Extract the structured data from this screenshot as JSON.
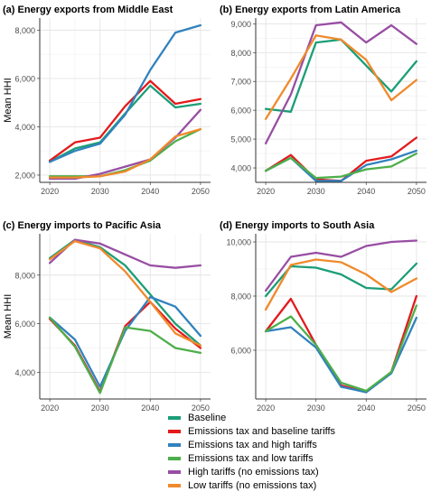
{
  "colors": {
    "baseline": "#1b9e77",
    "tax_baseline": "#e31a1c",
    "tax_high": "#3182bd",
    "tax_low": "#4daf4a",
    "high_tariffs": "#984ea3",
    "low_tariffs": "#ef8a2c"
  },
  "legend": [
    {
      "key": "baseline",
      "label": "Baseline"
    },
    {
      "key": "tax_baseline",
      "label": "Emissions tax and baseline tariffs"
    },
    {
      "key": "tax_high",
      "label": "Emissions tax and high tariffs"
    },
    {
      "key": "tax_low",
      "label": "Emissions tax and low tariffs"
    },
    {
      "key": "high_tariffs",
      "label": "High tariffs (no emissions tax)"
    },
    {
      "key": "low_tariffs",
      "label": "Low tariffs (no emissions tax)"
    }
  ],
  "chart_data": [
    {
      "type": "line",
      "title": "(a) Energy exports from Middle East",
      "ylabel": "Mean HHI",
      "x": [
        2020,
        2025,
        2030,
        2035,
        2040,
        2045,
        2050
      ],
      "xticks": [
        "2020",
        "2030",
        "2040",
        "2050"
      ],
      "ylim": [
        1700,
        8500
      ],
      "yticks": [
        2000,
        4000,
        6000,
        8000
      ],
      "ytick_labels": [
        "2,000",
        "4,000",
        "6,000",
        "8,000"
      ],
      "series": [
        {
          "key": "baseline",
          "values": [
            2550,
            3100,
            3350,
            4550,
            5700,
            4800,
            4950
          ]
        },
        {
          "key": "tax_baseline",
          "values": [
            2600,
            3350,
            3550,
            4850,
            5900,
            4950,
            5150
          ]
        },
        {
          "key": "tax_high",
          "values": [
            2550,
            3000,
            3300,
            4500,
            6350,
            7900,
            8200
          ]
        },
        {
          "key": "tax_low",
          "values": [
            1950,
            1950,
            1950,
            2200,
            2600,
            3400,
            3900
          ]
        },
        {
          "key": "high_tariffs",
          "values": [
            1850,
            1850,
            2050,
            2350,
            2650,
            3550,
            4700
          ]
        },
        {
          "key": "low_tariffs",
          "values": [
            1900,
            1900,
            1950,
            2150,
            2650,
            3600,
            3900
          ]
        }
      ]
    },
    {
      "type": "line",
      "title": "(b) Energy exports from Latin America",
      "ylabel": "",
      "x": [
        2020,
        2025,
        2030,
        2035,
        2040,
        2045,
        2050
      ],
      "xticks": [
        "2020",
        "2030",
        "2040",
        "2050"
      ],
      "ylim": [
        3500,
        9200
      ],
      "yticks": [
        4000,
        5000,
        6000,
        7000,
        8000,
        9000
      ],
      "ytick_labels": [
        "4,000",
        "5,000",
        "6,000",
        "7,000",
        "8,000",
        "9,000"
      ],
      "series": [
        {
          "key": "baseline",
          "values": [
            6050,
            5950,
            8350,
            8450,
            7550,
            6650,
            7700
          ]
        },
        {
          "key": "tax_baseline",
          "values": [
            3900,
            4450,
            3600,
            3550,
            4250,
            4400,
            5050
          ]
        },
        {
          "key": "tax_high",
          "values": [
            3900,
            4350,
            3550,
            3550,
            4100,
            4300,
            4600
          ]
        },
        {
          "key": "tax_low",
          "values": [
            3900,
            4350,
            3650,
            3700,
            3950,
            4050,
            4500
          ]
        },
        {
          "key": "high_tariffs",
          "values": [
            4850,
            6550,
            8950,
            9050,
            8350,
            8950,
            8300
          ]
        },
        {
          "key": "low_tariffs",
          "values": [
            5700,
            7100,
            8600,
            8450,
            7750,
            6350,
            7050
          ]
        }
      ]
    },
    {
      "type": "line",
      "title": "(c) Energy imports to Pacific Asia",
      "ylabel": "Mean HHI",
      "x": [
        2020,
        2025,
        2030,
        2035,
        2040,
        2045,
        2050
      ],
      "xticks": [
        "2020",
        "2030",
        "2040",
        "2050"
      ],
      "ylim": [
        2900,
        9700
      ],
      "yticks": [
        4000,
        6000,
        8000
      ],
      "ytick_labels": [
        "4,000",
        "6,000",
        "8,000"
      ],
      "series": [
        {
          "key": "baseline",
          "values": [
            8700,
            9450,
            9150,
            8400,
            7200,
            6000,
            5100
          ]
        },
        {
          "key": "tax_baseline",
          "values": [
            6200,
            5100,
            3200,
            5900,
            6900,
            5800,
            5000
          ]
        },
        {
          "key": "tax_high",
          "values": [
            6250,
            5350,
            3400,
            5700,
            7100,
            6700,
            5500
          ]
        },
        {
          "key": "tax_low",
          "values": [
            6250,
            5050,
            3150,
            5850,
            5700,
            5000,
            4800
          ]
        },
        {
          "key": "high_tariffs",
          "values": [
            8500,
            9450,
            9300,
            8850,
            8400,
            8300,
            8400
          ]
        },
        {
          "key": "low_tariffs",
          "values": [
            8650,
            9400,
            9100,
            8150,
            6900,
            5600,
            5100
          ]
        }
      ]
    },
    {
      "type": "line",
      "title": "(d) Energy imports to South Asia",
      "ylabel": "",
      "x": [
        2020,
        2025,
        2030,
        2035,
        2040,
        2045,
        2050
      ],
      "xticks": [
        "2020",
        "2030",
        "2040",
        "2050"
      ],
      "ylim": [
        4200,
        10300
      ],
      "yticks": [
        6000,
        8000,
        10000
      ],
      "ytick_labels": [
        "6,000",
        "8,000",
        "10,000"
      ],
      "series": [
        {
          "key": "baseline",
          "values": [
            8000,
            9100,
            9050,
            8800,
            8300,
            8250,
            9200
          ]
        },
        {
          "key": "tax_baseline",
          "values": [
            6700,
            7900,
            6200,
            4700,
            4450,
            5200,
            8000
          ]
        },
        {
          "key": "tax_high",
          "values": [
            6700,
            6850,
            6100,
            4650,
            4450,
            5150,
            7200
          ]
        },
        {
          "key": "tax_low",
          "values": [
            6700,
            7250,
            6200,
            4800,
            4500,
            5200,
            7650
          ]
        },
        {
          "key": "high_tariffs",
          "values": [
            8200,
            9450,
            9600,
            9450,
            9850,
            10000,
            10050
          ]
        },
        {
          "key": "low_tariffs",
          "values": [
            7500,
            9150,
            9350,
            9250,
            8800,
            8150,
            8650
          ]
        }
      ]
    }
  ]
}
